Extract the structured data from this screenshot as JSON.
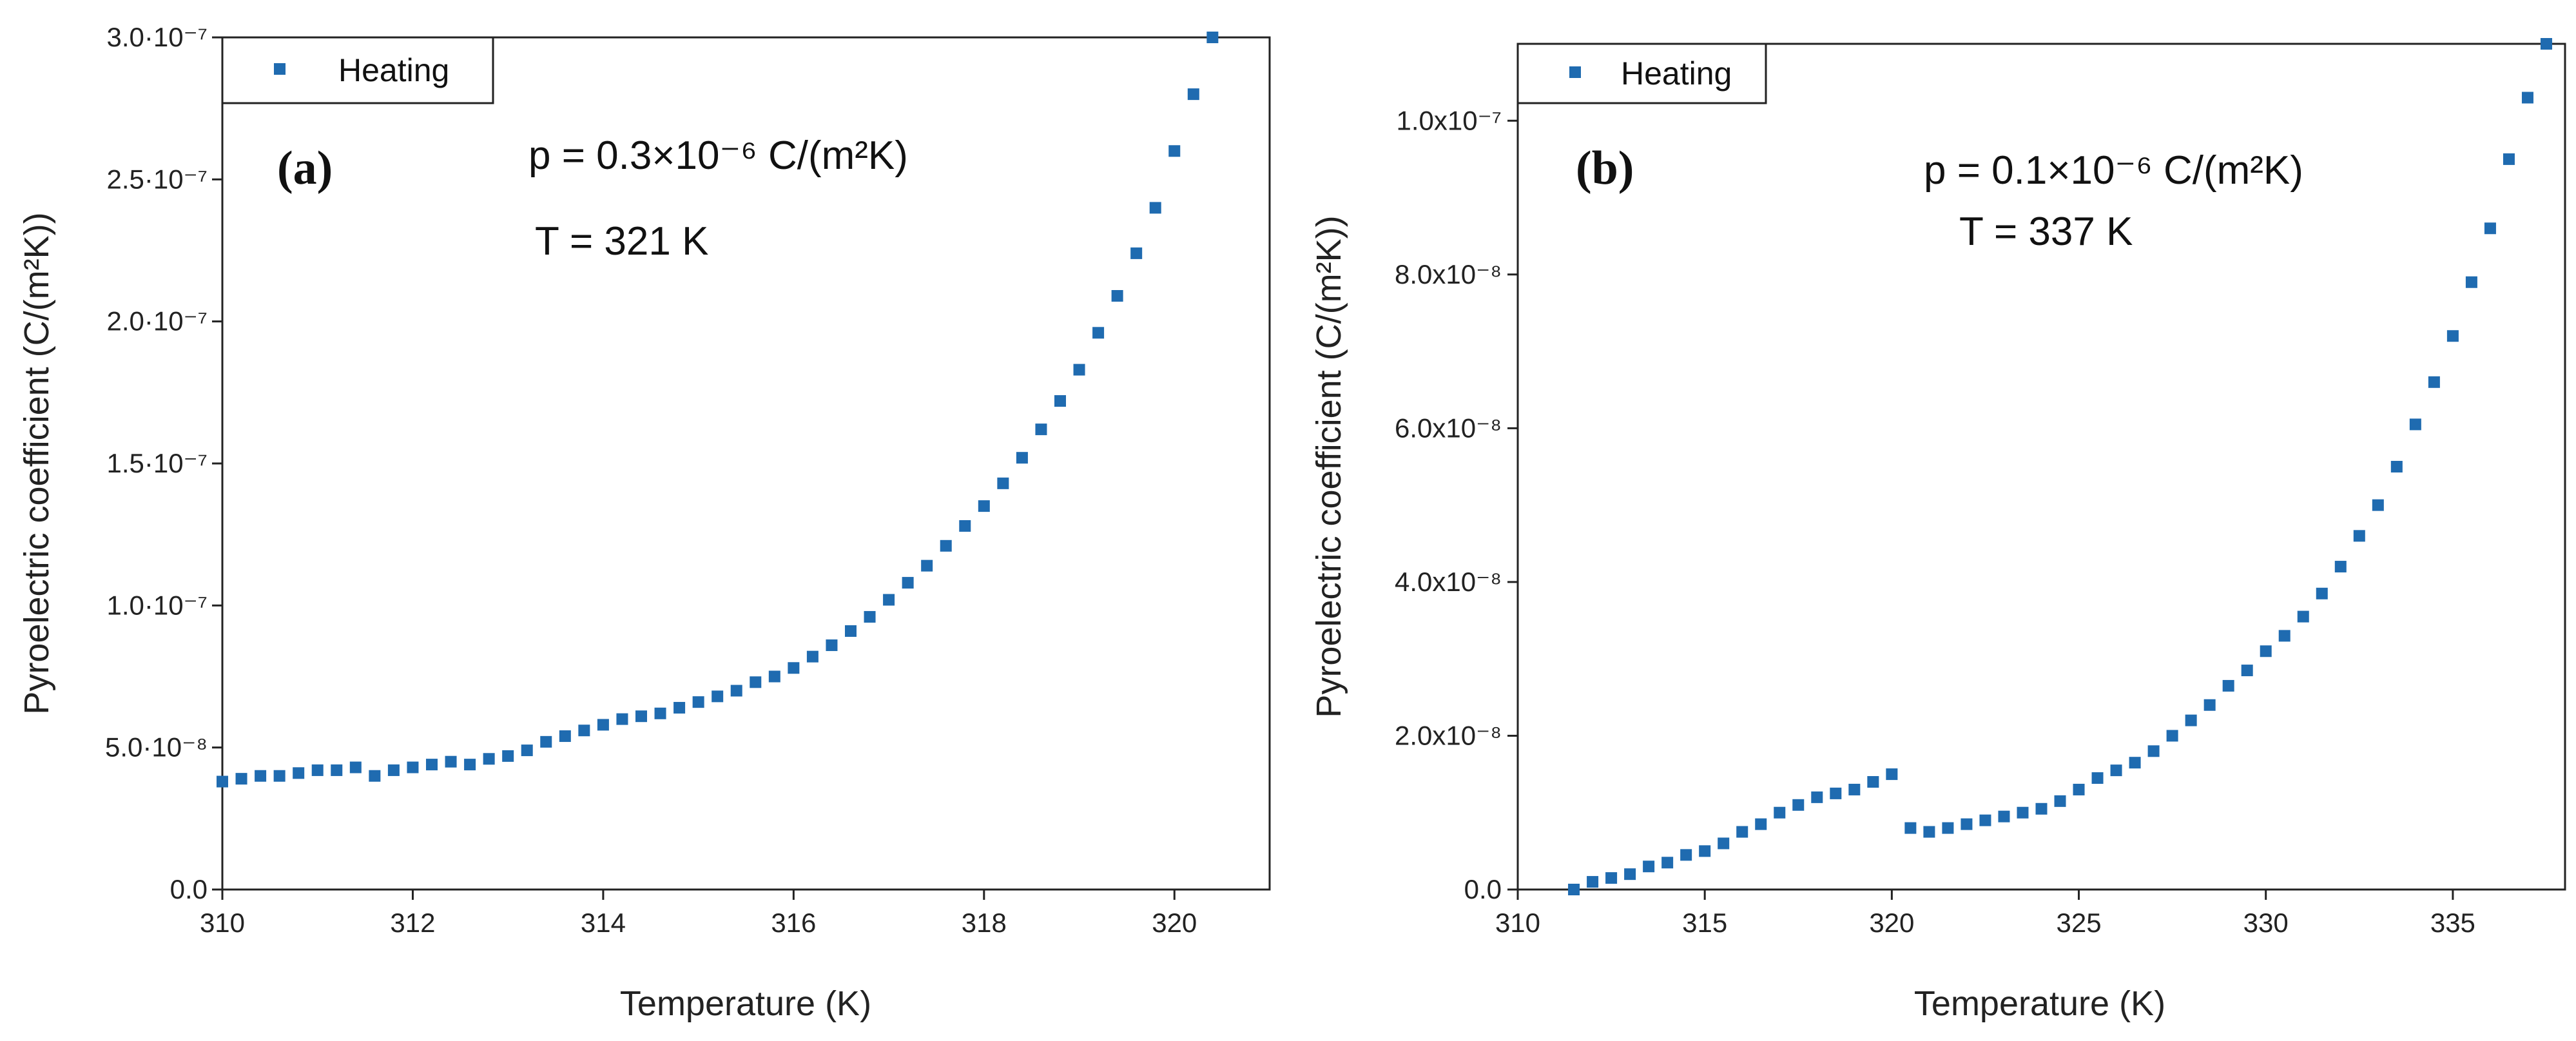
{
  "chart_data": [
    {
      "type": "scatter",
      "panel_label": "(a)",
      "xlabel": "Temperature (K)",
      "ylabel": "Pyroelectric coefficient (C/(m²K))",
      "xlim": [
        310,
        321
      ],
      "ylim": [
        0,
        3e-07
      ],
      "x_ticks": [
        {
          "value": 310,
          "label": "310"
        },
        {
          "value": 312,
          "label": "312"
        },
        {
          "value": 314,
          "label": "314"
        },
        {
          "value": 316,
          "label": "316"
        },
        {
          "value": 318,
          "label": "318"
        },
        {
          "value": 320,
          "label": "320"
        }
      ],
      "y_ticks": [
        {
          "value": 0,
          "label": "0.0"
        },
        {
          "value": 5e-08,
          "label": "5.0·10⁻⁸"
        },
        {
          "value": 1e-07,
          "label": "1.0·10⁻⁷"
        },
        {
          "value": 1.5e-07,
          "label": "1.5·10⁻⁷"
        },
        {
          "value": 2e-07,
          "label": "2.0·10⁻⁷"
        },
        {
          "value": 2.5e-07,
          "label": "2.5·10⁻⁷"
        },
        {
          "value": 3e-07,
          "label": "3.0·10⁻⁷"
        }
      ],
      "legend": "Heating",
      "annotation_p": "p = 0.3×10⁻⁶ C/(m²K)",
      "annotation_T": "T = 321 K",
      "series": [
        {
          "name": "Heating",
          "color": "#1f6bb0",
          "x": [
            310.0,
            310.2,
            310.4,
            310.6,
            310.8,
            311.0,
            311.2,
            311.4,
            311.6,
            311.8,
            312.0,
            312.2,
            312.4,
            312.6,
            312.8,
            313.0,
            313.2,
            313.4,
            313.6,
            313.8,
            314.0,
            314.2,
            314.4,
            314.6,
            314.8,
            315.0,
            315.2,
            315.4,
            315.6,
            315.8,
            316.0,
            316.2,
            316.4,
            316.6,
            316.8,
            317.0,
            317.2,
            317.4,
            317.6,
            317.8,
            318.0,
            318.2,
            318.4,
            318.6,
            318.8,
            319.0,
            319.2,
            319.4,
            319.6,
            319.8,
            320.0,
            320.2,
            320.4
          ],
          "y": [
            3.8e-08,
            3.9e-08,
            4e-08,
            4e-08,
            4.1e-08,
            4.2e-08,
            4.2e-08,
            4.3e-08,
            4e-08,
            4.2e-08,
            4.3e-08,
            4.4e-08,
            4.5e-08,
            4.4e-08,
            4.6e-08,
            4.7e-08,
            4.9e-08,
            5.2e-08,
            5.4e-08,
            5.6e-08,
            5.8e-08,
            6e-08,
            6.1e-08,
            6.2e-08,
            6.4e-08,
            6.6e-08,
            6.8e-08,
            7e-08,
            7.3e-08,
            7.5e-08,
            7.8e-08,
            8.2e-08,
            8.6e-08,
            9.1e-08,
            9.6e-08,
            1.02e-07,
            1.08e-07,
            1.14e-07,
            1.21e-07,
            1.28e-07,
            1.35e-07,
            1.43e-07,
            1.52e-07,
            1.62e-07,
            1.72e-07,
            1.83e-07,
            1.96e-07,
            2.09e-07,
            2.24e-07,
            2.4e-07,
            2.6e-07,
            2.8e-07,
            3e-07
          ]
        }
      ]
    },
    {
      "type": "scatter",
      "panel_label": "(b)",
      "xlabel": "Temperature (K)",
      "ylabel": "Pyroelectric coefficient (C/(m²K))",
      "xlim": [
        310,
        338
      ],
      "ylim": [
        0,
        1.1e-07
      ],
      "x_ticks": [
        {
          "value": 310,
          "label": "310"
        },
        {
          "value": 315,
          "label": "315"
        },
        {
          "value": 320,
          "label": "320"
        },
        {
          "value": 325,
          "label": "325"
        },
        {
          "value": 330,
          "label": "330"
        },
        {
          "value": 335,
          "label": "335"
        }
      ],
      "y_ticks": [
        {
          "value": 0,
          "label": "0.0"
        },
        {
          "value": 2e-08,
          "label": "2.0x10⁻⁸"
        },
        {
          "value": 4e-08,
          "label": "4.0x10⁻⁸"
        },
        {
          "value": 6e-08,
          "label": "6.0x10⁻⁸"
        },
        {
          "value": 8e-08,
          "label": "8.0x10⁻⁸"
        },
        {
          "value": 1e-07,
          "label": "1.0x10⁻⁷"
        }
      ],
      "legend": "Heating",
      "annotation_p": "p = 0.1×10⁻⁶ C/(m²K)",
      "annotation_T": "T = 337 K",
      "series": [
        {
          "name": "Heating",
          "color": "#1f6bb0",
          "x": [
            311.5,
            312.0,
            312.5,
            313.0,
            313.5,
            314.0,
            314.5,
            315.0,
            315.5,
            316.0,
            316.5,
            317.0,
            317.5,
            318.0,
            318.5,
            319.0,
            319.5,
            320.0,
            320.5,
            321.0,
            321.5,
            322.0,
            322.5,
            323.0,
            323.5,
            324.0,
            324.5,
            325.0,
            325.5,
            326.0,
            326.5,
            327.0,
            327.5,
            328.0,
            328.5,
            329.0,
            329.5,
            330.0,
            330.5,
            331.0,
            331.5,
            332.0,
            332.5,
            333.0,
            333.5,
            334.0,
            334.5,
            335.0,
            335.5,
            336.0,
            336.5,
            337.0,
            337.5
          ],
          "y": [
            0.0,
            1e-09,
            1.5e-09,
            2e-09,
            3e-09,
            3.5e-09,
            4.5e-09,
            5e-09,
            6e-09,
            7.5e-09,
            8.5e-09,
            1e-08,
            1.1e-08,
            1.2e-08,
            1.25e-08,
            1.3e-08,
            1.4e-08,
            1.5e-08,
            8e-09,
            7.5e-09,
            8e-09,
            8.5e-09,
            9e-09,
            9.5e-09,
            1e-08,
            1.05e-08,
            1.15e-08,
            1.3e-08,
            1.45e-08,
            1.55e-08,
            1.65e-08,
            1.8e-08,
            2e-08,
            2.2e-08,
            2.4e-08,
            2.65e-08,
            2.85e-08,
            3.1e-08,
            3.3e-08,
            3.55e-08,
            3.85e-08,
            4.2e-08,
            4.6e-08,
            5e-08,
            5.5e-08,
            6.05e-08,
            6.6e-08,
            7.2e-08,
            7.9e-08,
            8.6e-08,
            9.5e-08,
            1.03e-07,
            1.1e-07
          ]
        }
      ]
    }
  ]
}
